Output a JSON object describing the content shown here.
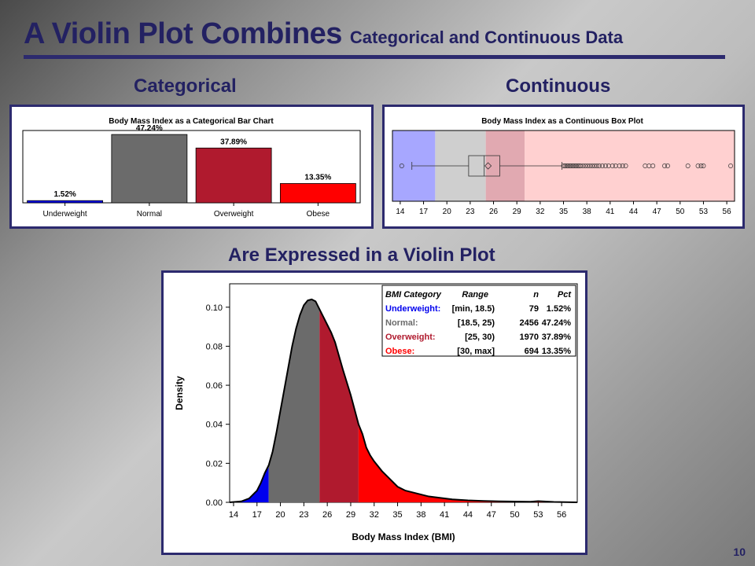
{
  "slide": {
    "title_main": "A Violin Plot Combines",
    "title_sub": "Categorical and Continuous Data",
    "head_categorical": "Categorical",
    "head_continuous": "Continuous",
    "head_violin": "Are Expressed in a Violin Plot",
    "page_number": "10"
  },
  "colors": {
    "underweight": "#0000ee",
    "normal": "#6b6b6b",
    "overweight": "#b01a2e",
    "obese": "#ff0000",
    "title": "#232162"
  },
  "chart_data": [
    {
      "type": "bar",
      "title": "Body Mass Index as a Categorical Bar Chart",
      "categories": [
        "Underweight",
        "Normal",
        "Overweight",
        "Obese"
      ],
      "values": [
        1.52,
        47.24,
        37.89,
        13.35
      ],
      "value_labels": [
        "1.52%",
        "47.24%",
        "37.89%",
        "13.35%"
      ],
      "bar_colors": [
        "#0000ee",
        "#6b6b6b",
        "#b01a2e",
        "#ff0000"
      ],
      "ylim": [
        0,
        50
      ]
    },
    {
      "type": "box",
      "title": "Body Mass Index as a Continuous Box Plot",
      "xlim": [
        13,
        57
      ],
      "x_ticks": [
        14,
        17,
        20,
        23,
        26,
        29,
        32,
        35,
        38,
        41,
        44,
        47,
        50,
        53,
        56
      ],
      "bands": [
        {
          "from": 13,
          "to": 18.5,
          "color": "#a7a7ff"
        },
        {
          "from": 18.5,
          "to": 25,
          "color": "#cfcfcf"
        },
        {
          "from": 25,
          "to": 30,
          "color": "#e1a9b1"
        },
        {
          "from": 30,
          "to": 57,
          "color": "#ffd0d0"
        }
      ],
      "whisker_low": 15.5,
      "q1": 22.8,
      "median": 24.8,
      "mean": 25.3,
      "q3": 26.8,
      "whisker_high": 34.8,
      "outliers": [
        14.2,
        35.0,
        35.2,
        35.4,
        35.6,
        35.8,
        36.0,
        36.2,
        36.4,
        36.6,
        36.8,
        37.0,
        37.2,
        37.5,
        37.8,
        38.1,
        38.4,
        38.7,
        39.0,
        39.3,
        39.6,
        40.0,
        40.4,
        40.8,
        41.3,
        41.7,
        42.2,
        42.6,
        43.0,
        45.5,
        46.0,
        46.5,
        48.0,
        48.4,
        51.0,
        52.3,
        52.7,
        53.0,
        56.5
      ]
    },
    {
      "type": "area",
      "xlabel": "Body Mass Index (BMI)",
      "ylabel": "Density",
      "xlim": [
        13.5,
        58
      ],
      "ylim": [
        0,
        0.112
      ],
      "x_ticks": [
        14,
        17,
        20,
        23,
        26,
        29,
        32,
        35,
        38,
        41,
        44,
        47,
        50,
        53,
        56
      ],
      "y_ticks": [
        0,
        0.02,
        0.04,
        0.06,
        0.08,
        0.1
      ],
      "y_tick_labels": [
        "0.00",
        "0.02",
        "0.04",
        "0.06",
        "0.08",
        "0.10"
      ],
      "x": [
        13.5,
        15,
        16,
        17,
        17.5,
        18,
        18.5,
        19,
        19.5,
        20,
        20.5,
        21,
        21.5,
        22,
        22.5,
        23,
        23.5,
        24,
        24.5,
        25,
        25.5,
        26,
        26.5,
        27,
        27.5,
        28,
        29,
        30,
        30.5,
        31,
        31.5,
        32,
        33,
        34,
        35,
        36,
        37,
        38,
        39,
        40,
        41,
        42,
        44,
        46,
        48,
        50,
        52,
        53,
        55,
        58
      ],
      "y": [
        0.0,
        0.0005,
        0.002,
        0.006,
        0.01,
        0.015,
        0.019,
        0.026,
        0.036,
        0.047,
        0.058,
        0.069,
        0.08,
        0.089,
        0.096,
        0.101,
        0.1035,
        0.104,
        0.103,
        0.099,
        0.095,
        0.091,
        0.087,
        0.082,
        0.075,
        0.068,
        0.055,
        0.04,
        0.035,
        0.028,
        0.024,
        0.021,
        0.016,
        0.012,
        0.008,
        0.006,
        0.005,
        0.004,
        0.003,
        0.0025,
        0.002,
        0.0015,
        0.001,
        0.0007,
        0.0005,
        0.0004,
        0.0003,
        0.0006,
        0.0002,
        0.0
      ],
      "regions": [
        {
          "from": 13.5,
          "to": 18.5,
          "color": "#0000ee"
        },
        {
          "from": 18.5,
          "to": 25,
          "color": "#6b6b6b"
        },
        {
          "from": 25,
          "to": 30,
          "color": "#b01a2e"
        },
        {
          "from": 30,
          "to": 58,
          "color": "#ff0000"
        }
      ],
      "legend": {
        "position": "top-right",
        "headers": [
          "BMI Category",
          "Range",
          "n",
          "Pct"
        ],
        "rows": [
          {
            "category": "Underweight:",
            "range": "[min, 18.5)",
            "n": "79",
            "pct": "1.52%",
            "color": "#0000ee"
          },
          {
            "category": "Normal:",
            "range": "[18.5, 25)",
            "n": "2456",
            "pct": "47.24%",
            "color": "#6b6b6b"
          },
          {
            "category": "Overweight:",
            "range": "[25, 30)",
            "n": "1970",
            "pct": "37.89%",
            "color": "#b01a2e"
          },
          {
            "category": "Obese:",
            "range": "[30, max]",
            "n": "694",
            "pct": "13.35%",
            "color": "#ff0000"
          }
        ]
      }
    }
  ]
}
